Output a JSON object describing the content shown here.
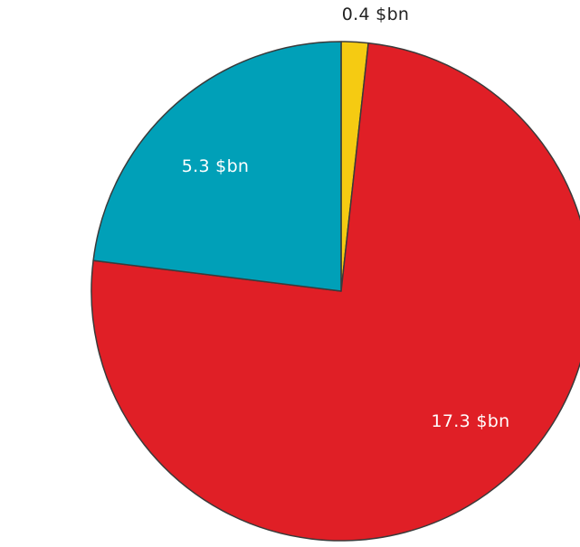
{
  "chart_data": {
    "type": "pie",
    "slices": [
      {
        "label": "0.4 $bn",
        "value": 0.4,
        "color": "#f5cb12",
        "label_color": "#222222"
      },
      {
        "label": "17.3 $bn",
        "value": 17.3,
        "color": "#e01f26",
        "label_color": "#ffffff"
      },
      {
        "label": "5.3 $bn",
        "value": 5.3,
        "color": "#00a0b8",
        "label_color": "#ffffff"
      }
    ],
    "start": "top, clockwise",
    "legend": "none"
  }
}
